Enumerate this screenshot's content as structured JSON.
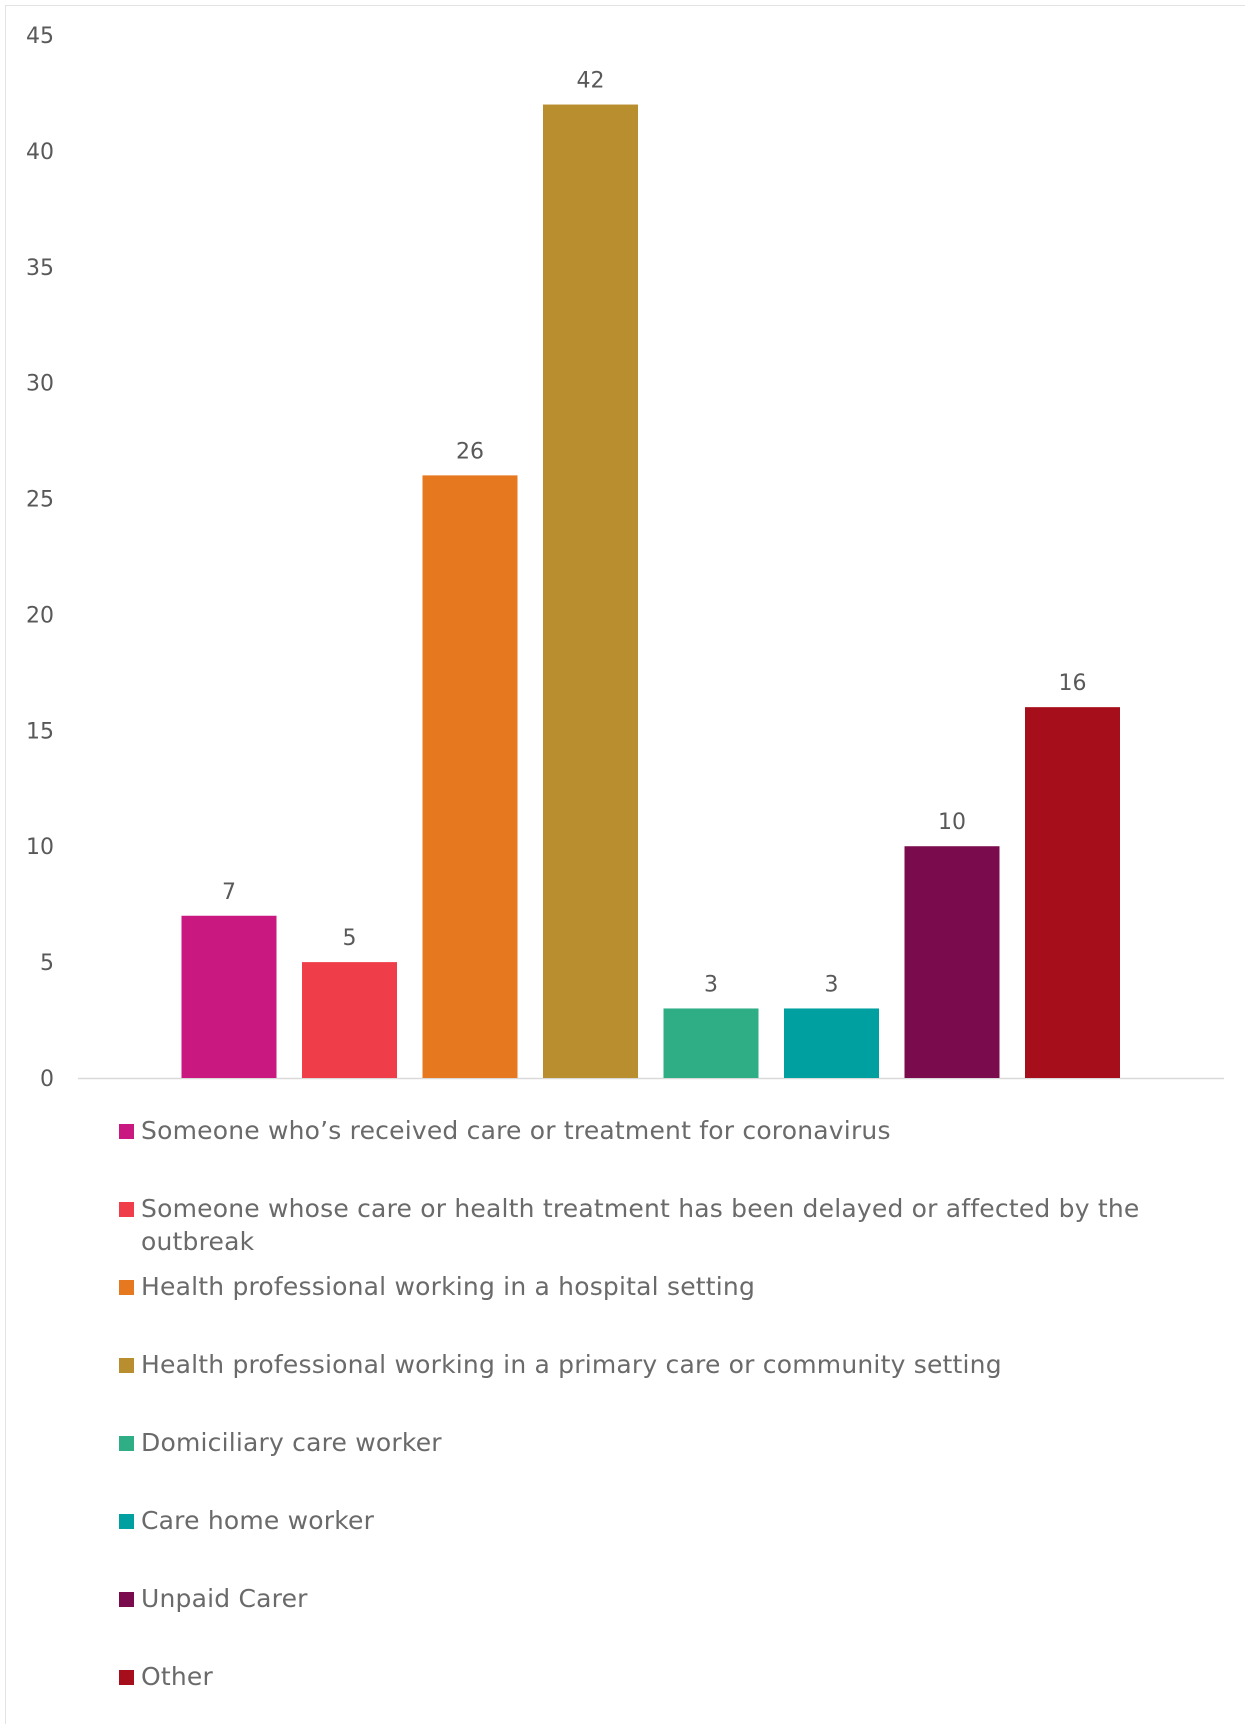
{
  "chart_data": {
    "type": "bar",
    "categories": [
      "Someone who’s received care or treatment for coronavirus",
      "Someone whose care or health treatment has been delayed or affected by the outbreak",
      "Health professional working in a hospital setting",
      "Health professional working in a primary care or community setting",
      "Domiciliary care worker",
      "Care home worker",
      "Unpaid Carer",
      "Other"
    ],
    "values": [
      7,
      5,
      26,
      42,
      3,
      3,
      10,
      16
    ],
    "colors": [
      "#c9187f",
      "#ef3e4a",
      "#e67820",
      "#b98e2f",
      "#2fae86",
      "#00a0a0",
      "#7a0b4c",
      "#a50e1a"
    ],
    "title": "",
    "xlabel": "",
    "ylabel": "",
    "ylim": [
      0,
      45
    ],
    "yticks": [
      0,
      5,
      10,
      15,
      20,
      25,
      30,
      35,
      40,
      45
    ],
    "grid": false,
    "data_labels": true,
    "legend_position": "bottom"
  }
}
